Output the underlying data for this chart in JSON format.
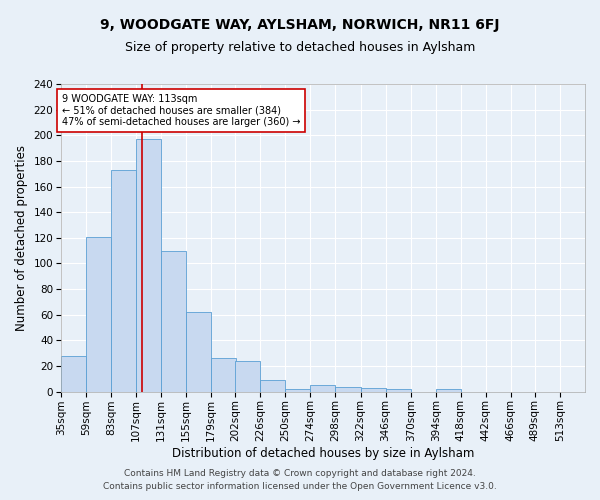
{
  "title": "9, WOODGATE WAY, AYLSHAM, NORWICH, NR11 6FJ",
  "subtitle": "Size of property relative to detached houses in Aylsham",
  "xlabel": "Distribution of detached houses by size in Aylsham",
  "ylabel": "Number of detached properties",
  "footer_line1": "Contains HM Land Registry data © Crown copyright and database right 2024.",
  "footer_line2": "Contains public sector information licensed under the Open Government Licence v3.0.",
  "bin_labels": [
    "35sqm",
    "59sqm",
    "83sqm",
    "107sqm",
    "131sqm",
    "155sqm",
    "179sqm",
    "202sqm",
    "226sqm",
    "250sqm",
    "274sqm",
    "298sqm",
    "322sqm",
    "346sqm",
    "370sqm",
    "394sqm",
    "418sqm",
    "442sqm",
    "466sqm",
    "489sqm",
    "513sqm"
  ],
  "bin_edges": [
    35,
    59,
    83,
    107,
    131,
    155,
    179,
    202,
    226,
    250,
    274,
    298,
    322,
    346,
    370,
    394,
    418,
    442,
    466,
    489,
    513
  ],
  "bar_heights": [
    28,
    121,
    173,
    197,
    110,
    62,
    26,
    24,
    9,
    2,
    5,
    4,
    3,
    2,
    0,
    2,
    0,
    0,
    0,
    0
  ],
  "bar_color": "#c8d9f0",
  "bar_edge_color": "#5a9fd4",
  "property_line_x": 113,
  "property_line_color": "#cc0000",
  "annotation_text": "9 WOODGATE WAY: 113sqm\n← 51% of detached houses are smaller (384)\n47% of semi-detached houses are larger (360) →",
  "annotation_box_color": "#ffffff",
  "annotation_border_color": "#cc0000",
  "ylim": [
    0,
    240
  ],
  "yticks": [
    0,
    20,
    40,
    60,
    80,
    100,
    120,
    140,
    160,
    180,
    200,
    220,
    240
  ],
  "background_color": "#e8f0f8",
  "grid_color": "#ffffff",
  "title_fontsize": 10,
  "subtitle_fontsize": 9,
  "axis_label_fontsize": 8.5,
  "tick_fontsize": 7.5,
  "footer_fontsize": 6.5
}
